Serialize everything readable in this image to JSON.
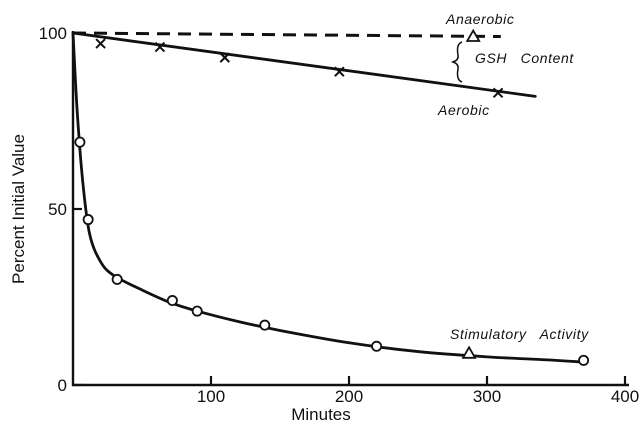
{
  "chart_data": {
    "type": "line",
    "xlabel": "Minutes",
    "ylabel": "Percent Initial Value",
    "xlim": [
      0,
      400
    ],
    "ylim": [
      0,
      100
    ],
    "xticks": [
      "100",
      "200",
      "300",
      "400"
    ],
    "yticks": [
      "0",
      "50",
      "100"
    ],
    "series": [
      {
        "name": "Anaerobic",
        "style": "dashed",
        "x": [
          0,
          310
        ],
        "y": [
          100,
          99
        ],
        "points": [
          {
            "x": 290,
            "y": 99,
            "marker": "triangle"
          }
        ]
      },
      {
        "name": "Aerobic",
        "style": "solid",
        "x": [
          0,
          335
        ],
        "y": [
          100,
          82
        ],
        "points": [
          {
            "x": 20,
            "y": 97,
            "marker": "x"
          },
          {
            "x": 63,
            "y": 96,
            "marker": "x"
          },
          {
            "x": 110,
            "y": 93,
            "marker": "x"
          },
          {
            "x": 193,
            "y": 89,
            "marker": "x"
          },
          {
            "x": 308,
            "y": 83,
            "marker": "x"
          }
        ]
      },
      {
        "name": "Stimulatory Activity",
        "style": "solid",
        "x": [
          0,
          3,
          7,
          12,
          20,
          30,
          50,
          70,
          90,
          120,
          150,
          200,
          250,
          300,
          350,
          370
        ],
        "y": [
          100,
          78,
          58,
          43,
          35,
          31,
          27,
          23.5,
          21,
          18,
          15.5,
          12,
          9.5,
          8,
          7,
          6.5
        ],
        "points": [
          {
            "x": 5,
            "y": 69,
            "marker": "circle"
          },
          {
            "x": 11,
            "y": 47,
            "marker": "circle"
          },
          {
            "x": 32,
            "y": 30,
            "marker": "circle"
          },
          {
            "x": 72,
            "y": 24,
            "marker": "circle"
          },
          {
            "x": 90,
            "y": 21,
            "marker": "circle"
          },
          {
            "x": 139,
            "y": 17,
            "marker": "circle"
          },
          {
            "x": 220,
            "y": 11,
            "marker": "circle"
          },
          {
            "x": 287,
            "y": 9,
            "marker": "triangle"
          },
          {
            "x": 370,
            "y": 7,
            "marker": "circle"
          }
        ]
      }
    ],
    "annotations": {
      "anaerobic": "Anaerobic",
      "aerobic": "Aerobic",
      "gsh": "GSH   Content",
      "stimulatory": "Stimulatory   Activity"
    }
  }
}
